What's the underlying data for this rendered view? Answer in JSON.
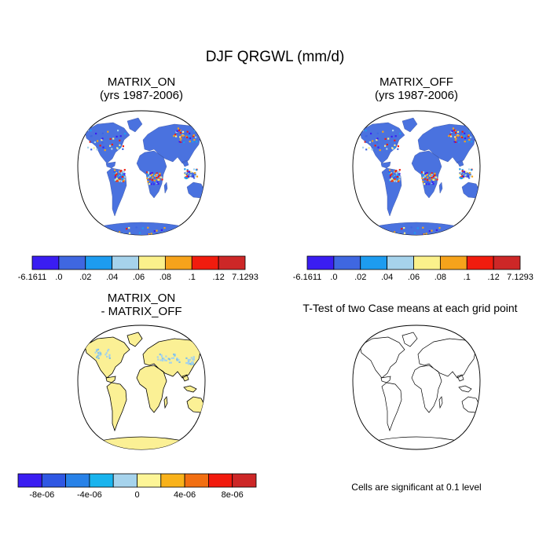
{
  "figure": {
    "title": "DJF QRGWL (mm/d)"
  },
  "panels": [
    {
      "id": "matrix-on",
      "title_lines": [
        "MATRIX_ON",
        "(yrs 1987-2006)"
      ],
      "fill": "#4a72df",
      "colorbar": {
        "colors": [
          "#3a1df2",
          "#3f67e1",
          "#1d9cf0",
          "#a6d3ec",
          "#fbf18b",
          "#f6a31b",
          "#f11c0e",
          "#cd2727"
        ],
        "labels": [
          "-6.1611",
          ".0",
          ".02",
          ".04",
          ".06",
          ".08",
          ".1",
          ".12",
          "7.1293"
        ]
      }
    },
    {
      "id": "matrix-off",
      "title_lines": [
        "MATRIX_OFF",
        "(yrs 1987-2006)"
      ],
      "fill": "#4a72df",
      "colorbar": {
        "colors": [
          "#3a1df2",
          "#3f67e1",
          "#1d9cf0",
          "#a6d3ec",
          "#fbf18b",
          "#f6a31b",
          "#f11c0e",
          "#cd2727"
        ],
        "labels": [
          "-6.1611",
          ".0",
          ".02",
          ".04",
          ".06",
          ".08",
          ".1",
          ".12",
          "7.1293"
        ]
      }
    },
    {
      "id": "difference",
      "title_lines": [
        "MATRIX_ON",
        "- MATRIX_OFF"
      ],
      "fill": "#fbf095",
      "colorbar": {
        "colors": [
          "#3a1df2",
          "#2f57e3",
          "#2882e8",
          "#19b4ee",
          "#a6d3ec",
          "#fdf597",
          "#f9b21a",
          "#f26f12",
          "#f21a0d",
          "#cd2727"
        ],
        "labels": [
          "-8e-06",
          "-4e-06",
          "0",
          "4e-06",
          "8e-06"
        ]
      }
    },
    {
      "id": "ttest",
      "title": "T-Test of two Case means at each grid point",
      "note": "Cells are significant at 0.1 level",
      "fill": "none"
    }
  ]
}
